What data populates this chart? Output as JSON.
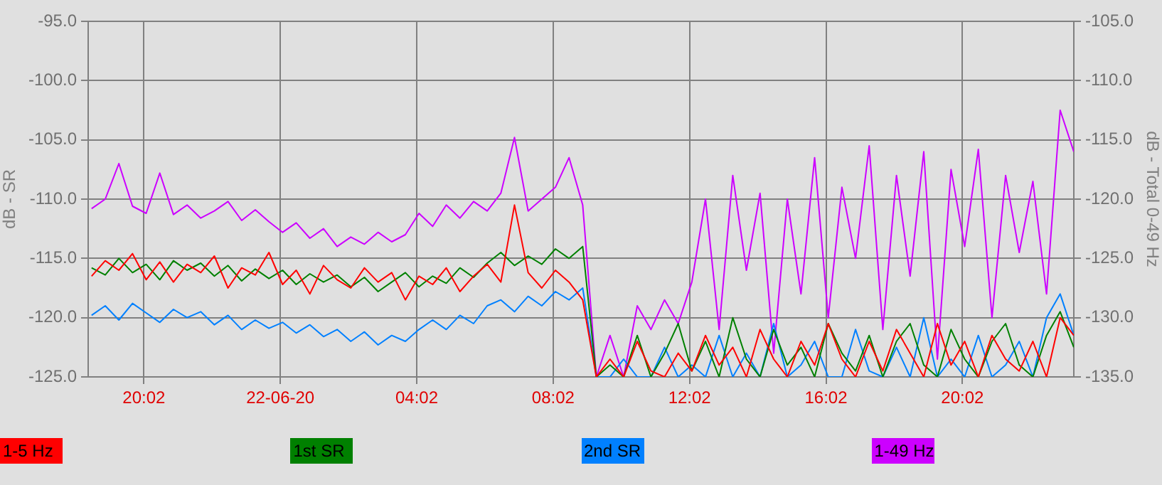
{
  "chart_data": {
    "type": "line",
    "ylabel": "dB - SR",
    "y2label": "dB - Total 0-49 Hz",
    "x": [
      "--06-21T18:30",
      "--06-21T18:54",
      "--06-21T19:18",
      "--06-21T19:42",
      "--06-21T20:06",
      "--06-21T20:30",
      "--06-21T20:54",
      "--06-21T21:18",
      "--06-21T21:42",
      "--06-21T22:06",
      "--06-21T22:30",
      "--06-21T22:54",
      "--06-21T23:18",
      "--06-21T23:42",
      "--06-22T00:06",
      "--06-22T00:30",
      "--06-22T00:54",
      "--06-22T01:18",
      "--06-22T01:42",
      "--06-22T02:06",
      "--06-22T02:30",
      "--06-22T02:54",
      "--06-22T03:18",
      "--06-22T03:42",
      "--06-22T04:06",
      "--06-22T04:30",
      "--06-22T04:54",
      "--06-22T05:18",
      "--06-22T05:42",
      "--06-22T06:06",
      "--06-22T06:30",
      "--06-22T06:54",
      "--06-22T07:18",
      "--06-22T07:42",
      "--06-22T08:06",
      "--06-22T08:30",
      "--06-22T08:54",
      "--06-22T09:18",
      "--06-22T09:42",
      "--06-22T10:06",
      "--06-22T10:30",
      "--06-22T10:54",
      "--06-22T11:18",
      "--06-22T11:42",
      "--06-22T12:06",
      "--06-22T12:30",
      "--06-22T12:54",
      "--06-22T13:18",
      "--06-22T13:42",
      "--06-22T14:06",
      "--06-22T14:30",
      "--06-22T14:54",
      "--06-22T15:18",
      "--06-22T15:42",
      "--06-22T16:06",
      "--06-22T16:30",
      "--06-22T16:54",
      "--06-22T17:18",
      "--06-22T17:42",
      "--06-22T18:06",
      "--06-22T18:30",
      "--06-22T18:54",
      "--06-22T19:18",
      "--06-22T19:42",
      "--06-22T20:06",
      "--06-22T20:30",
      "--06-22T20:54",
      "--06-22T21:18",
      "--06-22T21:42",
      "--06-22T22:06",
      "--06-22T22:30",
      "--06-22T22:54",
      "--06-22T23:18"
    ],
    "series": [
      {
        "name": "1-5 Hz",
        "color": "#ff0000",
        "values": [
          -116.5,
          -115.2,
          -116.0,
          -114.6,
          -116.8,
          -115.3,
          -117.0,
          -115.5,
          -116.2,
          -114.8,
          -117.5,
          -115.8,
          -116.4,
          -114.5,
          -117.2,
          -116.0,
          -118.0,
          -115.6,
          -116.8,
          -117.5,
          -115.8,
          -117.0,
          -116.2,
          -118.5,
          -116.5,
          -117.2,
          -115.8,
          -117.8,
          -116.5,
          -115.5,
          -117.0,
          -110.5,
          -116.2,
          -117.5,
          -116.0,
          -117.0,
          -118.5,
          -125,
          -123.5,
          -125,
          -122,
          -124.5,
          -125,
          -123,
          -124.5,
          -121.5,
          -124,
          -122.5,
          -125,
          -121,
          -123.5,
          -125,
          -122,
          -124,
          -120.5,
          -123.5,
          -125,
          -122,
          -124.5,
          -121,
          -123,
          -125,
          -120.5,
          -124,
          -122,
          -125,
          -121.5,
          -123.5,
          -124.5,
          -122,
          -125,
          -120,
          -121.5
        ]
      },
      {
        "name": "1st SR",
        "color": "#008000",
        "values": [
          -115.8,
          -116.4,
          -115.0,
          -116.2,
          -115.5,
          -116.8,
          -115.2,
          -116.0,
          -115.4,
          -116.5,
          -115.6,
          -116.9,
          -115.9,
          -116.7,
          -116.0,
          -117.2,
          -116.3,
          -117.0,
          -116.4,
          -117.4,
          -116.6,
          -117.8,
          -117.0,
          -116.2,
          -117.4,
          -116.5,
          -117.1,
          -115.8,
          -116.6,
          -115.4,
          -114.5,
          -115.6,
          -114.8,
          -115.5,
          -114.2,
          -115.0,
          -114.0,
          -125,
          -124,
          -125,
          -121.5,
          -125,
          -123,
          -120.5,
          -124.5,
          -122,
          -125,
          -120,
          -123.5,
          -125,
          -121,
          -124,
          -122.5,
          -125,
          -120.5,
          -123,
          -124.5,
          -121.5,
          -125,
          -122,
          -120.5,
          -124,
          -125,
          -121,
          -123.5,
          -125,
          -122,
          -120.5,
          -124,
          -125,
          -121.5,
          -119.5,
          -122.5
        ]
      },
      {
        "name": "2nd SR",
        "color": "#0080ff",
        "values": [
          -119.8,
          -119.0,
          -120.2,
          -118.8,
          -119.6,
          -120.4,
          -119.3,
          -120.0,
          -119.5,
          -120.6,
          -119.8,
          -121.0,
          -120.2,
          -120.9,
          -120.4,
          -121.3,
          -120.6,
          -121.6,
          -121.0,
          -122.0,
          -121.2,
          -122.3,
          -121.5,
          -122.0,
          -121.0,
          -120.2,
          -121.0,
          -119.8,
          -120.5,
          -119.0,
          -118.5,
          -119.5,
          -118.2,
          -119.0,
          -117.8,
          -118.5,
          -117.5,
          -125,
          -125,
          -123.5,
          -125,
          -125,
          -122.5,
          -125,
          -124,
          -125,
          -121.5,
          -125,
          -123,
          -125,
          -120.5,
          -125,
          -124,
          -122,
          -125,
          -125,
          -121,
          -124.5,
          -125,
          -122.5,
          -125,
          -120,
          -125,
          -123.5,
          -125,
          -121.5,
          -125,
          -124,
          -122,
          -125,
          -120,
          -118,
          -121.5
        ]
      },
      {
        "name": "1-49 Hz",
        "color": "#cc00ff",
        "axis": "y2",
        "values": [
          -120.8,
          -120.0,
          -117.0,
          -120.6,
          -121.2,
          -117.8,
          -121.3,
          -120.5,
          -121.6,
          -121.0,
          -120.2,
          -121.8,
          -120.9,
          -121.9,
          -122.8,
          -122.0,
          -123.3,
          -122.5,
          -124.0,
          -123.2,
          -123.8,
          -122.8,
          -123.6,
          -123.0,
          -121.2,
          -122.3,
          -120.5,
          -121.6,
          -120.2,
          -121.0,
          -119.5,
          -114.8,
          -121.0,
          -120.0,
          -119.0,
          -116.5,
          -120.5,
          -135,
          -131.5,
          -135,
          -129.0,
          -131.0,
          -128.5,
          -130.5,
          -127.0,
          -120.0,
          -131.0,
          -118.0,
          -126.0,
          -119.5,
          -133.0,
          -120.0,
          -128.0,
          -116.5,
          -130.0,
          -119.0,
          -125.0,
          -115.5,
          -131.0,
          -118.0,
          -126.5,
          -116.0,
          -133.5,
          -117.5,
          -124.0,
          -115.8,
          -130.0,
          -118.0,
          -124.5,
          -118.5,
          -128.0,
          -112.5,
          -116.0
        ]
      }
    ],
    "xlim": [
      "--06-21T18:24",
      "--06-22T23:18"
    ],
    "xticks": [
      {
        "value": "--06-21T20:02",
        "label": "20:02"
      },
      {
        "value": "--06-22T00:02",
        "label": "22-06-20"
      },
      {
        "value": "--06-22T04:02",
        "label": "04:02"
      },
      {
        "value": "--06-22T08:02",
        "label": "08:02"
      },
      {
        "value": "--06-22T12:02",
        "label": "12:02"
      },
      {
        "value": "--06-22T16:02",
        "label": "16:02"
      },
      {
        "value": "--06-22T20:02",
        "label": "20:02"
      }
    ],
    "ylim": [
      -125,
      -95
    ],
    "yticks": [
      {
        "value": -125,
        "label": "-125.0"
      },
      {
        "value": -120,
        "label": "-120.0"
      },
      {
        "value": -115,
        "label": "-115.0"
      },
      {
        "value": -110,
        "label": "-110.0"
      },
      {
        "value": -105,
        "label": "-105.0"
      },
      {
        "value": -100,
        "label": "-100.0"
      },
      {
        "value": -95,
        "label": "-95.0"
      }
    ],
    "y2lim": [
      -135,
      -105
    ],
    "y2ticks": [
      {
        "value": -135,
        "label": "-135.0"
      },
      {
        "value": -130,
        "label": "-130.0"
      },
      {
        "value": -125,
        "label": "-125.0"
      },
      {
        "value": -120,
        "label": "-120.0"
      },
      {
        "value": -115,
        "label": "-115.0"
      },
      {
        "value": -110,
        "label": "-110.0"
      },
      {
        "value": -105,
        "label": "-105.0"
      }
    ],
    "grid": true,
    "legend": "bottom",
    "marker": "none",
    "line_style": "solid"
  }
}
